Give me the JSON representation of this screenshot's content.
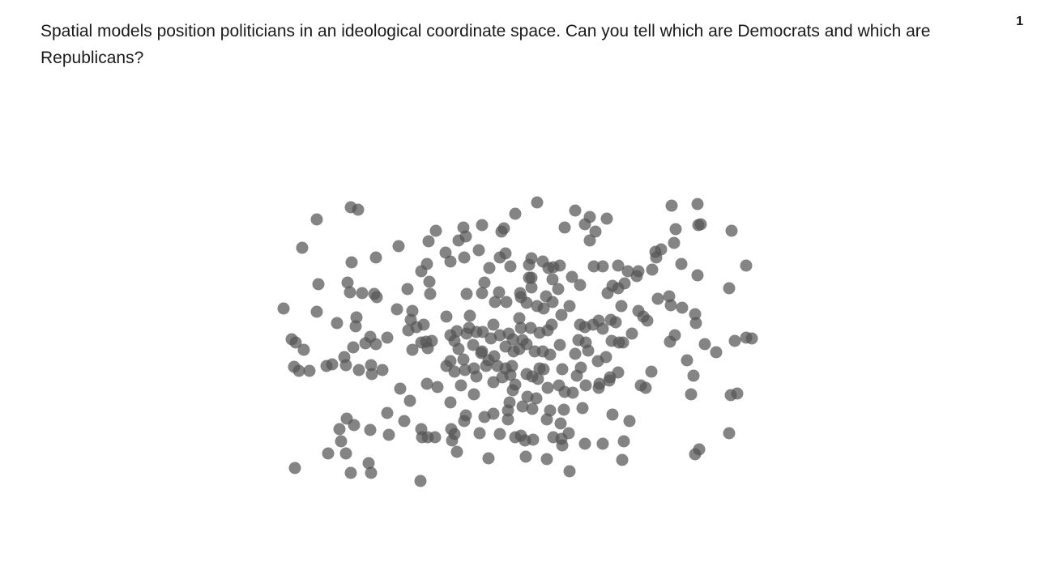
{
  "page_number": 1,
  "chart_data": {
    "type": "scatter",
    "title": "Spatial models position politicians in an ideological coordinate space. Can you tell which are Democrats and which are Republicans?",
    "color": "#555555",
    "xlim": [
      340,
      940
    ],
    "ylim": [
      610,
      240
    ],
    "x": [
      391,
      433,
      442,
      373,
      434,
      464,
      492,
      393,
      429,
      432,
      447,
      462,
      465,
      350,
      391,
      416,
      440,
      439,
      360,
      365,
      375,
      363,
      369,
      382,
      403,
      410,
      425,
      427,
      436,
      443,
      451,
      457,
      464,
      458,
      459,
      472,
      478,
      490,
      503,
      509,
      507,
      504,
      514,
      523,
      509,
      520,
      526,
      528,
      533,
      530,
      531,
      520,
      527,
      529,
      538,
      550,
      556,
      566,
      572,
      575,
      573,
      591,
      595,
      604,
      617,
      619,
      624,
      630,
      622,
      636,
      663,
      697,
      710,
      722,
      728,
      735,
      728,
      749,
      656,
      653,
      670,
      677,
      683,
      691,
      656,
      656,
      653,
      682,
      689,
      706,
      716,
      733,
      744,
      750,
      756,
      763,
      763,
      771,
      775,
      788,
      786,
      805,
      810,
      809,
      816,
      832,
      834,
      829,
      861,
      862,
      865,
      903,
      841,
      861,
      900,
      921,
      812,
      826,
      828,
      842,
      858,
      859,
      833,
      827,
      848,
      870,
      884,
      907,
      921,
      928,
      856,
      853,
      902,
      910,
      900,
      863,
      858,
      804,
      791,
      797,
      780,
      788,
      794,
      799,
      767,
      748,
      738,
      763,
      753,
      752,
      740,
      739,
      723,
      712,
      717,
      707,
      697,
      690,
      694,
      719,
      756,
      777,
      770,
      768,
      744,
      722,
      703,
      675,
      649,
      603,
      564,
      519,
      458,
      455,
      433,
      427,
      405,
      364,
      419,
      421,
      428,
      437,
      457,
      480,
      478,
      499,
      520,
      521,
      528,
      537,
      557,
      558,
      561,
      573,
      575,
      592,
      598,
      609,
      617,
      627,
      636,
      643,
      648,
      658,
      683,
      693,
      694,
      692,
      702,
      679,
      675,
      696,
      657,
      645,
      629,
      627,
      633,
      636,
      630,
      650,
      657,
      664,
      666,
      671,
      651,
      662,
      676,
      556,
      540,
      527,
      506,
      494,
      569,
      585,
      588,
      600,
      609,
      620,
      632,
      624,
      614,
      603,
      594,
      584,
      576,
      580,
      564,
      561,
      551,
      556,
      566,
      572,
      556,
      551,
      561,
      574,
      596,
      609,
      611,
      616,
      625,
      643,
      642,
      650,
      663,
      671,
      682,
      693,
      703,
      674,
      641,
      643,
      655,
      666,
      676,
      681,
      645,
      650,
      660,
      670,
      679,
      691,
      710,
      714,
      723,
      726,
      732,
      739,
      744,
      754,
      760,
      755,
      764,
      769,
      641,
      634,
      624,
      617,
      628,
      633,
      606,
      595,
      716,
      722,
      576,
      595,
      598,
      579,
      588,
      585,
      610
    ],
    "values": [
      271,
      256,
      259,
      306,
      324,
      318,
      304,
      351,
      349,
      361,
      362,
      363,
      367,
      381,
      385,
      399,
      392,
      403,
      419,
      423,
      432,
      453,
      458,
      458,
      452,
      450,
      441,
      451,
      429,
      457,
      424,
      416,
      425,
      451,
      462,
      457,
      417,
      382,
      357,
      384,
      395,
      408,
      404,
      401,
      432,
      423,
      422,
      430,
      421,
      348,
      363,
      335,
      326,
      298,
      285,
      312,
      323,
      297,
      281,
      292,
      318,
      309,
      278,
      331,
      318,
      286,
      313,
      329,
      282,
      264,
      250,
      281,
      260,
      277,
      268,
      286,
      297,
      270,
      319,
      327,
      323,
      331,
      330,
      328,
      343,
      355,
      343,
      345,
      357,
      342,
      352,
      329,
      329,
      362,
      353,
      356,
      328,
      350,
      335,
      335,
      341,
      333,
      318,
      311,
      308,
      300,
      283,
      254,
      252,
      278,
      277,
      285,
      326,
      340,
      356,
      328,
      369,
      366,
      377,
      380,
      388,
      399,
      414,
      422,
      445,
      425,
      435,
      421,
      417,
      418,
      464,
      487,
      488,
      486,
      535,
      555,
      561,
      459,
      476,
      479,
      412,
      384,
      391,
      396,
      378,
      441,
      446,
      460,
      466,
      470,
      474,
      479,
      476,
      464,
      454,
      485,
      484,
      476,
      456,
      504,
      512,
      520,
      545,
      568,
      548,
      548,
      582,
      567,
      564,
      566,
      558,
      594,
      584,
      572,
      584,
      560,
      560,
      578,
      530,
      545,
      517,
      525,
      531,
      537,
      510,
      520,
      530,
      540,
      540,
      540,
      530,
      544,
      536,
      520,
      513,
      535,
      515,
      511,
      536,
      518,
      540,
      538,
      544,
      543,
      540,
      542,
      550,
      523,
      535,
      507,
      518,
      506,
      505,
      502,
      497,
      507,
      482,
      475,
      463,
      462,
      465,
      468,
      455,
      456,
      490,
      492,
      479,
      497,
      478,
      474,
      495,
      480,
      476,
      487,
      465,
      452,
      472,
      466,
      452,
      455,
      452,
      445,
      436,
      426,
      412,
      390,
      409,
      421,
      391,
      414,
      431,
      444,
      446,
      452,
      459,
      457,
      410,
      401,
      373,
      361,
      373,
      367,
      362,
      374,
      378,
      381,
      373,
      389,
      378,
      366,
      393,
      405,
      405,
      411,
      408,
      401,
      420,
      425,
      434,
      434,
      438,
      426,
      437,
      420,
      423,
      433,
      401,
      396,
      406,
      395,
      398,
      421,
      423,
      423,
      431,
      434,
      428,
      414,
      412,
      419,
      418,
      434,
      401,
      404,
      363,
      362,
      349,
      405,
      410,
      455,
      440
    ]
  }
}
